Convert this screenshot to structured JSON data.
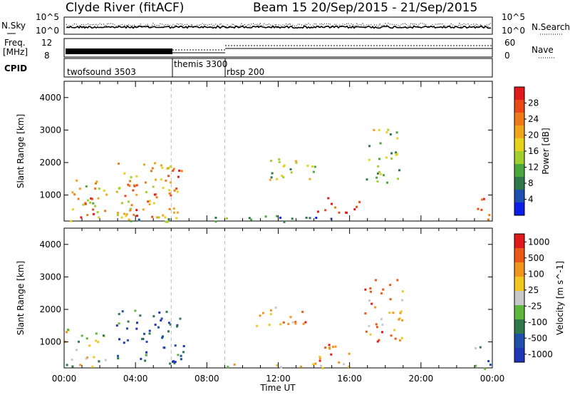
{
  "header": {
    "station": "Clyde River (fitACF)",
    "beam_info": "Beam 15  20/Sep/2015 - 21/Sep/2015"
  },
  "panels": {
    "nsky": {
      "label": "N.Sky",
      "tick_top": "10^5",
      "tick_bottom": "10^0",
      "right_label": "N.Search"
    },
    "freq": {
      "label_line1": "Freq.",
      "label_line2": "[MHz]",
      "tick_top": "12",
      "tick_bottom": "8",
      "right_tick_top": "60",
      "right_tick_bottom": "0",
      "right_label": "Nave"
    },
    "cpid": {
      "label": "CPID",
      "segments": [
        {
          "name": "twofsound 3503",
          "start_hour": 0
        },
        {
          "name": "themis 3300",
          "start_hour": 6
        },
        {
          "name": "rbsp 200",
          "start_hour": 9
        }
      ]
    }
  },
  "chart_data": [
    {
      "type": "heatmap",
      "title": "",
      "xlabel": "Time UT",
      "ylabel": "Slant Range [km]",
      "xlim_hours": [
        0,
        24
      ],
      "ylim": [
        200,
        4500
      ],
      "x_tick_labels": [
        "00:00",
        "04:00",
        "08:00",
        "12:00",
        "16:00",
        "20:00",
        "00:00"
      ],
      "y_ticks": [
        1000,
        2000,
        3000,
        4000
      ],
      "colorbar": {
        "label": "Power [dB]",
        "ticks": [
          "4",
          "8",
          "12",
          "16",
          "20",
          "24",
          "28"
        ],
        "colors": [
          "#0a1ee8",
          "#1b4fb0",
          "#2f7a4a",
          "#49a83c",
          "#a0cf2e",
          "#e7d21e",
          "#f0a61c",
          "#ef7a18",
          "#ea4816",
          "#e0191a"
        ]
      },
      "echo_regions": [
        {
          "t0": 0.3,
          "t1": 2.4,
          "r0": 250,
          "r1": 1500,
          "level": 5
        },
        {
          "t0": 0.8,
          "t1": 2.0,
          "r0": 250,
          "r1": 950,
          "level": 9
        },
        {
          "t0": 2.9,
          "t1": 6.7,
          "r0": 300,
          "r1": 2050,
          "level": 6
        },
        {
          "t0": 3.1,
          "t1": 4.3,
          "r0": 250,
          "r1": 1400,
          "level": 8
        },
        {
          "t0": 5.0,
          "t1": 6.4,
          "r0": 1000,
          "r1": 2000,
          "level": 7
        },
        {
          "t0": 0.0,
          "t1": 9.0,
          "r0": 200,
          "r1": 350,
          "level": 3
        },
        {
          "t0": 9.0,
          "t1": 16.0,
          "r0": 200,
          "r1": 400,
          "level": 2
        },
        {
          "t0": 10.7,
          "t1": 14.2,
          "r0": 1500,
          "r1": 2200,
          "level": 4
        },
        {
          "t0": 14.0,
          "t1": 16.6,
          "r0": 450,
          "r1": 950,
          "level": 9
        },
        {
          "t0": 16.8,
          "t1": 18.8,
          "r0": 1400,
          "r1": 3100,
          "level": 4
        },
        {
          "t0": 23.1,
          "t1": 24.0,
          "r0": 200,
          "r1": 950,
          "level": 8
        }
      ]
    },
    {
      "type": "heatmap",
      "title": "",
      "xlabel": "Time UT",
      "ylabel": "Slant Range [km]",
      "xlim_hours": [
        0,
        24
      ],
      "ylim": [
        200,
        4500
      ],
      "x_tick_labels": [
        "00:00",
        "04:00",
        "08:00",
        "12:00",
        "16:00",
        "20:00",
        "00:00"
      ],
      "y_ticks": [
        1000,
        2000,
        3000,
        4000
      ],
      "colorbar": {
        "label": "Velocity [m s^-1]",
        "ticks": [
          "1000",
          "500",
          "100",
          "25",
          "-25",
          "-100",
          "-500",
          "-1000"
        ],
        "colors": [
          "#2036b8",
          "#1f4fa8",
          "#2f7a4a",
          "#5cb83a",
          "#c8c8c8",
          "#f2c61e",
          "#f0941c",
          "#ea5a16",
          "#e0191a"
        ]
      },
      "echo_regions": [
        {
          "t0": 0.0,
          "t1": 2.4,
          "r0": 250,
          "r1": 1500,
          "level": 4
        },
        {
          "t0": 2.9,
          "t1": 6.7,
          "r0": 300,
          "r1": 2000,
          "level": 1
        },
        {
          "t0": 9.0,
          "t1": 16.0,
          "r0": 200,
          "r1": 400,
          "level": 5
        },
        {
          "t0": 10.7,
          "t1": 13.6,
          "r0": 1400,
          "r1": 2100,
          "level": 6
        },
        {
          "t0": 14.0,
          "t1": 16.6,
          "r0": 450,
          "r1": 950,
          "level": 7
        },
        {
          "t0": 16.8,
          "t1": 19.0,
          "r0": 1000,
          "r1": 3000,
          "level": 6
        },
        {
          "t0": 23.0,
          "t1": 24.0,
          "r0": 200,
          "r1": 900,
          "level": 3
        }
      ]
    }
  ]
}
